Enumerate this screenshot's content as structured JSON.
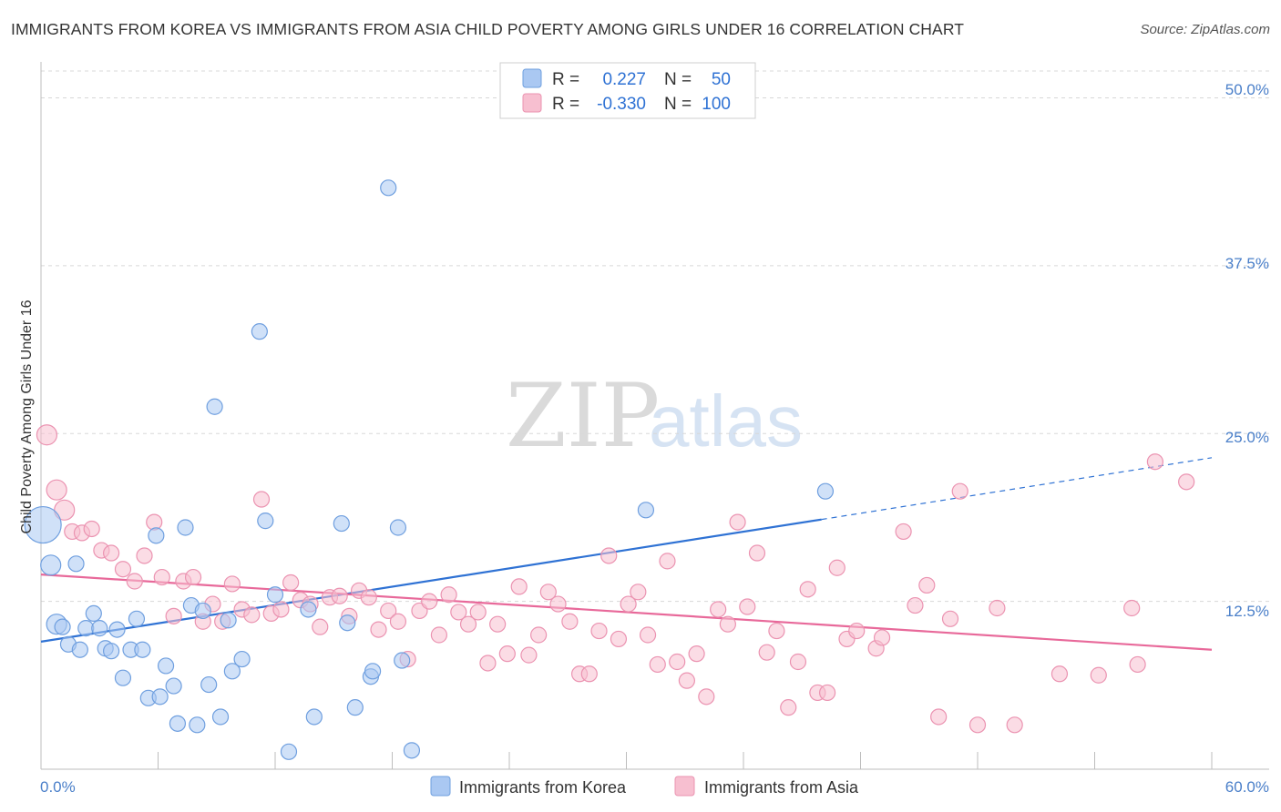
{
  "title": "IMMIGRANTS FROM KOREA VS IMMIGRANTS FROM ASIA CHILD POVERTY AMONG GIRLS UNDER 16 CORRELATION CHART",
  "source": "Source: ZipAtlas.com",
  "watermark": {
    "zip": "ZIP",
    "atlas": "atlas"
  },
  "colors": {
    "korea_fill": "#aac8f2",
    "korea_stroke": "#6f9fdf",
    "korea_line": "#2f72d4",
    "asia_fill": "#f7bfd0",
    "asia_stroke": "#eb93b1",
    "asia_line": "#e8699a",
    "tick_text": "#4a7fc9",
    "grid": "#d8d8d8"
  },
  "legend_top": {
    "rows": [
      {
        "r_label": "R =",
        "r_value": "0.227",
        "n_label": "N =",
        "n_value": "50"
      },
      {
        "r_label": "R =",
        "r_value": "-0.330",
        "n_label": "N =",
        "n_value": "100"
      }
    ]
  },
  "legend_bottom": [
    "Immigrants from Korea",
    "Immigrants from Asia"
  ],
  "chart_data": {
    "type": "scatter",
    "title": "IMMIGRANTS FROM KOREA VS IMMIGRANTS FROM ASIA CHILD POVERTY AMONG GIRLS UNDER 16 CORRELATION CHART",
    "xlabel": "",
    "ylabel": "Child Poverty Among Girls Under 16",
    "xlim": [
      0,
      60
    ],
    "ylim": [
      0,
      52
    ],
    "x_tick_labels": [
      "0.0%",
      "60.0%"
    ],
    "y_ticks": [
      12.5,
      25.0,
      37.5,
      50.0
    ],
    "y_tick_labels": [
      "12.5%",
      "25.0%",
      "37.5%",
      "50.0%"
    ],
    "grid": "horizontal dashed",
    "legend_placement": "top-center and bottom",
    "series": [
      {
        "name": "Immigrants from Korea",
        "trend": {
          "x": [
            0,
            40
          ],
          "y": [
            9.5,
            18.6
          ],
          "dashed_to": [
            60,
            23.2
          ]
        },
        "points": [
          [
            0.1,
            18.2,
            3
          ],
          [
            0.5,
            15.2,
            2
          ],
          [
            0.8,
            10.8,
            2
          ],
          [
            1.1,
            10.6,
            1
          ],
          [
            1.4,
            9.3,
            1
          ],
          [
            1.8,
            15.3,
            1
          ],
          [
            2.0,
            8.9,
            1
          ],
          [
            2.3,
            10.5,
            1
          ],
          [
            2.7,
            11.6,
            1
          ],
          [
            3.0,
            10.5,
            1
          ],
          [
            3.3,
            9.0,
            1
          ],
          [
            3.6,
            8.8,
            1
          ],
          [
            3.9,
            10.4,
            1
          ],
          [
            4.2,
            6.8,
            1
          ],
          [
            4.6,
            8.9,
            1
          ],
          [
            4.9,
            11.2,
            1
          ],
          [
            5.2,
            8.9,
            1
          ],
          [
            5.5,
            5.3,
            1
          ],
          [
            5.9,
            17.4,
            1
          ],
          [
            6.1,
            5.4,
            1
          ],
          [
            6.4,
            7.7,
            1
          ],
          [
            6.8,
            6.2,
            1
          ],
          [
            7.0,
            3.4,
            1
          ],
          [
            7.4,
            18.0,
            1
          ],
          [
            7.7,
            12.2,
            1
          ],
          [
            8.0,
            3.3,
            1
          ],
          [
            8.3,
            11.8,
            1
          ],
          [
            8.6,
            6.3,
            1
          ],
          [
            8.9,
            27.0,
            1
          ],
          [
            9.2,
            3.9,
            1
          ],
          [
            9.6,
            11.1,
            1
          ],
          [
            9.8,
            7.3,
            1
          ],
          [
            10.3,
            8.2,
            1
          ],
          [
            11.2,
            32.6,
            1
          ],
          [
            11.5,
            18.5,
            1
          ],
          [
            12.0,
            13.0,
            1
          ],
          [
            12.7,
            1.3,
            1
          ],
          [
            13.7,
            11.9,
            1
          ],
          [
            14.0,
            3.9,
            1
          ],
          [
            15.4,
            18.3,
            1
          ],
          [
            15.7,
            10.9,
            1
          ],
          [
            16.1,
            4.6,
            1
          ],
          [
            16.9,
            6.9,
            1
          ],
          [
            17.0,
            7.3,
            1
          ],
          [
            17.8,
            43.3,
            1
          ],
          [
            18.3,
            18.0,
            1
          ],
          [
            18.5,
            8.1,
            1
          ],
          [
            19.0,
            1.4,
            1
          ],
          [
            31.0,
            19.3,
            1
          ],
          [
            40.2,
            20.7,
            1
          ]
        ]
      },
      {
        "name": "Immigrants from Asia",
        "trend": {
          "x": [
            0,
            60
          ],
          "y": [
            14.5,
            8.9
          ]
        },
        "points": [
          [
            0.3,
            24.9,
            2
          ],
          [
            0.8,
            20.8,
            2
          ],
          [
            1.2,
            19.3,
            2
          ],
          [
            1.6,
            17.7,
            1
          ],
          [
            2.1,
            17.6,
            1
          ],
          [
            2.6,
            17.9,
            1
          ],
          [
            3.1,
            16.3,
            1
          ],
          [
            3.6,
            16.1,
            1
          ],
          [
            4.2,
            14.9,
            1
          ],
          [
            4.8,
            14.0,
            1
          ],
          [
            5.3,
            15.9,
            1
          ],
          [
            5.8,
            18.4,
            1
          ],
          [
            6.2,
            14.3,
            1
          ],
          [
            6.8,
            11.4,
            1
          ],
          [
            7.3,
            14.0,
            1
          ],
          [
            7.8,
            14.3,
            1
          ],
          [
            8.3,
            11.0,
            1
          ],
          [
            8.8,
            12.3,
            1
          ],
          [
            9.3,
            11.0,
            1
          ],
          [
            9.8,
            13.8,
            1
          ],
          [
            10.3,
            11.9,
            1
          ],
          [
            10.8,
            11.5,
            1
          ],
          [
            11.3,
            20.1,
            1
          ],
          [
            11.8,
            11.6,
            1
          ],
          [
            12.3,
            11.9,
            1
          ],
          [
            12.8,
            13.9,
            1
          ],
          [
            13.3,
            12.6,
            1
          ],
          [
            13.8,
            12.3,
            1
          ],
          [
            14.3,
            10.6,
            1
          ],
          [
            14.8,
            12.8,
            1
          ],
          [
            15.3,
            12.9,
            1
          ],
          [
            15.8,
            11.4,
            1
          ],
          [
            16.3,
            13.3,
            1
          ],
          [
            16.8,
            12.8,
            1
          ],
          [
            17.3,
            10.4,
            1
          ],
          [
            17.8,
            11.8,
            1
          ],
          [
            18.3,
            11.0,
            1
          ],
          [
            18.8,
            8.2,
            1
          ],
          [
            19.4,
            11.8,
            1
          ],
          [
            19.9,
            12.5,
            1
          ],
          [
            20.4,
            10.0,
            1
          ],
          [
            20.9,
            13.0,
            1
          ],
          [
            21.4,
            11.7,
            1
          ],
          [
            21.9,
            10.8,
            1
          ],
          [
            22.4,
            11.7,
            1
          ],
          [
            22.9,
            7.9,
            1
          ],
          [
            23.4,
            10.8,
            1
          ],
          [
            23.9,
            8.6,
            1
          ],
          [
            24.5,
            13.6,
            1
          ],
          [
            25.0,
            8.5,
            1
          ],
          [
            25.5,
            10.0,
            1
          ],
          [
            26.0,
            13.2,
            1
          ],
          [
            26.5,
            12.3,
            1
          ],
          [
            27.1,
            11.0,
            1
          ],
          [
            27.6,
            7.1,
            1
          ],
          [
            28.1,
            7.1,
            1
          ],
          [
            28.6,
            10.3,
            1
          ],
          [
            29.1,
            15.9,
            1
          ],
          [
            29.6,
            9.7,
            1
          ],
          [
            30.1,
            12.3,
            1
          ],
          [
            30.6,
            13.2,
            1
          ],
          [
            31.1,
            10.0,
            1
          ],
          [
            31.6,
            7.8,
            1
          ],
          [
            32.1,
            15.5,
            1
          ],
          [
            32.6,
            8.0,
            1
          ],
          [
            33.1,
            6.6,
            1
          ],
          [
            33.6,
            8.6,
            1
          ],
          [
            34.1,
            5.4,
            1
          ],
          [
            34.7,
            11.9,
            1
          ],
          [
            35.2,
            10.8,
            1
          ],
          [
            35.7,
            18.4,
            1
          ],
          [
            36.2,
            12.1,
            1
          ],
          [
            36.7,
            16.1,
            1
          ],
          [
            37.2,
            8.7,
            1
          ],
          [
            37.7,
            10.3,
            1
          ],
          [
            38.3,
            4.6,
            1
          ],
          [
            38.8,
            8.0,
            1
          ],
          [
            39.3,
            13.4,
            1
          ],
          [
            39.8,
            5.7,
            1
          ],
          [
            40.3,
            5.7,
            1
          ],
          [
            40.8,
            15.0,
            1
          ],
          [
            41.3,
            9.7,
            1
          ],
          [
            41.8,
            10.3,
            1
          ],
          [
            42.8,
            9.0,
            1
          ],
          [
            43.1,
            9.8,
            1
          ],
          [
            44.2,
            17.7,
            1
          ],
          [
            44.8,
            12.2,
            1
          ],
          [
            45.4,
            13.7,
            1
          ],
          [
            46.0,
            3.9,
            1
          ],
          [
            46.6,
            11.2,
            1
          ],
          [
            47.1,
            20.7,
            1
          ],
          [
            48.0,
            3.3,
            1
          ],
          [
            49.0,
            12.0,
            1
          ],
          [
            49.9,
            3.3,
            1
          ],
          [
            52.2,
            7.1,
            1
          ],
          [
            54.2,
            7.0,
            1
          ],
          [
            55.9,
            12.0,
            1
          ],
          [
            56.2,
            7.8,
            1
          ],
          [
            57.1,
            22.9,
            1
          ],
          [
            58.7,
            21.4,
            1
          ]
        ]
      }
    ]
  }
}
